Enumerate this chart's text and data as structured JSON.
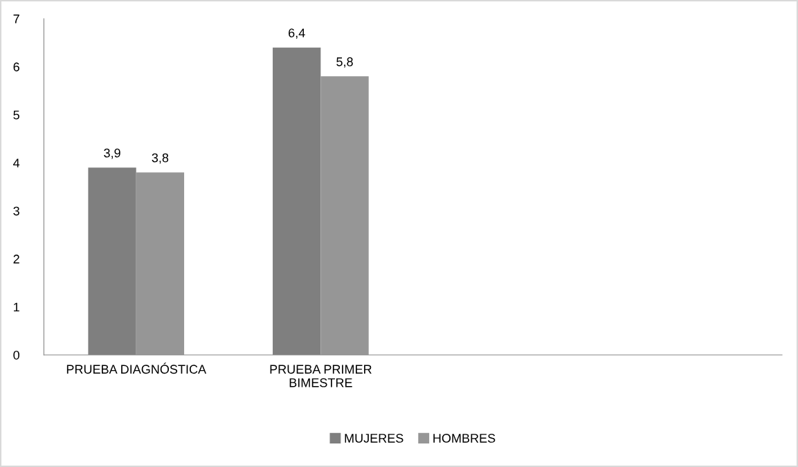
{
  "chart_data": {
    "type": "bar",
    "categories": [
      "PRUEBA DIAGNÓSTICA",
      "PRUEBA PRIMER BIMESTRE",
      null,
      null
    ],
    "series": [
      {
        "name": "MUJERES",
        "color": "#7f7f7f",
        "values": [
          3.9,
          6.4,
          null,
          null
        ],
        "value_labels": [
          "3,9",
          "6,4",
          null,
          null
        ]
      },
      {
        "name": "HOMBRES",
        "color": "#969696",
        "values": [
          3.8,
          5.8,
          null,
          null
        ],
        "value_labels": [
          "3,8",
          "5,8",
          null,
          null
        ]
      }
    ],
    "ylim": [
      0,
      7
    ],
    "yticks": [
      0,
      1,
      2,
      3,
      4,
      5,
      6,
      7
    ],
    "grid": false,
    "legend": "bottom"
  }
}
